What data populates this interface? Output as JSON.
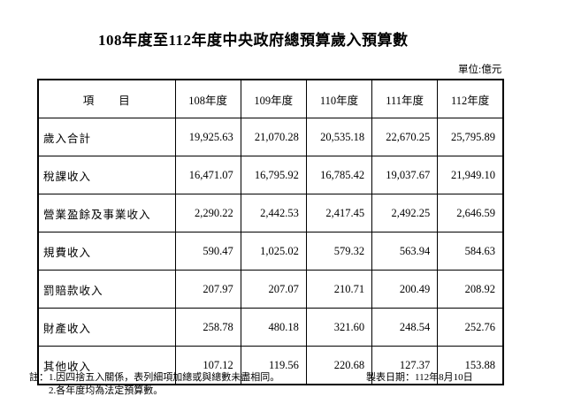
{
  "page": {
    "title": "108年度至112年度中央政府總預算歲入預算數",
    "unit_label": "單位:億元",
    "background_color": "#ffffff",
    "text_color": "#000000",
    "border_color": "#000000"
  },
  "table": {
    "header": {
      "item_col": "項　　目",
      "year_cols": [
        "108年度",
        "109年度",
        "110年度",
        "111年度",
        "112年度"
      ]
    },
    "rows": [
      {
        "label": "歲入合計",
        "values": [
          "19,925.63",
          "21,070.28",
          "20,535.18",
          "22,670.25",
          "25,795.89"
        ]
      },
      {
        "label": "稅課收入",
        "values": [
          "16,471.07",
          "16,795.92",
          "16,785.42",
          "19,037.67",
          "21,949.10"
        ]
      },
      {
        "label": "營業盈餘及事業收入",
        "values": [
          "2,290.22",
          "2,442.53",
          "2,417.45",
          "2,492.25",
          "2,646.59"
        ]
      },
      {
        "label": "規費收入",
        "values": [
          "590.47",
          "1,025.02",
          "579.32",
          "563.94",
          "584.63"
        ]
      },
      {
        "label": "罰賠款收入",
        "values": [
          "207.97",
          "207.07",
          "210.71",
          "200.49",
          "208.92"
        ]
      },
      {
        "label": "財產收入",
        "values": [
          "258.78",
          "480.18",
          "321.60",
          "248.54",
          "252.76"
        ]
      },
      {
        "label": "其他收入",
        "values": [
          "107.12",
          "119.56",
          "220.68",
          "127.37",
          "153.88"
        ]
      }
    ]
  },
  "footnotes": {
    "line1": "註：1.因四捨五入關係，表列細項加總或與總數未盡相同。",
    "line2": "2.各年度均為法定預算數。",
    "report_date": "製表日期：112年8月10日"
  }
}
